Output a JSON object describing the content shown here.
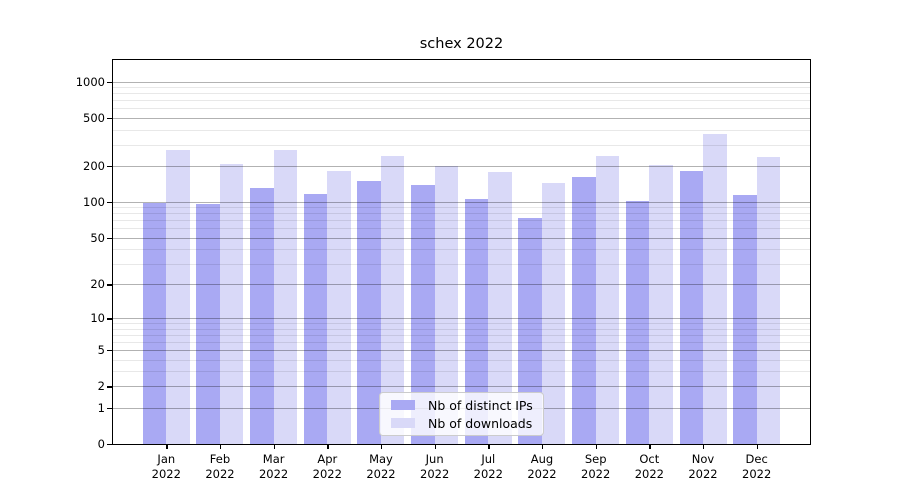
{
  "figure": {
    "title": "schex 2022",
    "background_color": "#ffffff"
  },
  "chart_data": {
    "type": "bar",
    "title": "schex 2022",
    "categories": [
      "Jan",
      "Feb",
      "Mar",
      "Apr",
      "May",
      "Jun",
      "Jul",
      "Aug",
      "Sep",
      "Oct",
      "Nov",
      "Dec"
    ],
    "category_year": "2022",
    "series": [
      {
        "name": "Nb of distinct IPs",
        "color": "#a9a9f3",
        "values": [
          98,
          96,
          131,
          116,
          148,
          139,
          106,
          74,
          160,
          102,
          180,
          114
        ]
      },
      {
        "name": "Nb of downloads",
        "color": "#d9d9f8",
        "values": [
          272,
          207,
          272,
          182,
          240,
          199,
          178,
          145,
          240,
          203,
          365,
          238
        ]
      }
    ],
    "xlabel": "",
    "ylabel": "",
    "y_scale": "log10(1+y)",
    "y_ticks": [
      0,
      1,
      2,
      5,
      10,
      20,
      50,
      100,
      200,
      500,
      1000
    ],
    "y_minor_ticks": [
      3,
      4,
      6,
      7,
      8,
      9,
      30,
      40,
      60,
      70,
      80,
      90,
      300,
      400,
      600,
      700,
      800,
      900
    ],
    "ylim": [
      0,
      1500
    ],
    "grid": true,
    "grid_major_color": "#b3b3b3",
    "grid_minor_color": "#e8e8e8",
    "legend_position": "lower center",
    "legend_entries": [
      "Nb of distinct IPs",
      "Nb of downloads"
    ]
  }
}
